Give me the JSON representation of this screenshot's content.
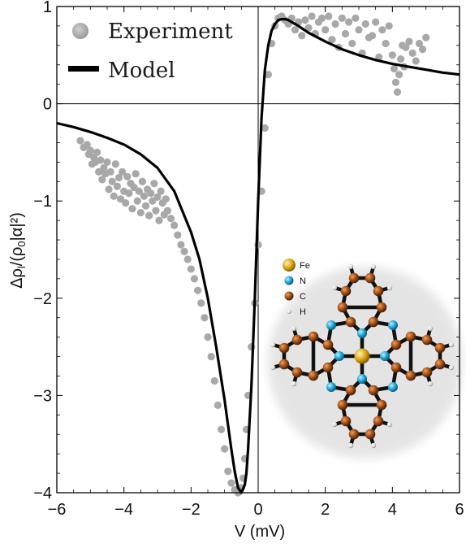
{
  "chart_data": {
    "type": "scatter",
    "xlabel": "V (mV)",
    "ylabel": "Δρ_l/(ρ_0|α|²)",
    "xlim": [
      -6,
      6
    ],
    "ylim": [
      -4,
      1
    ],
    "x_ticks": [
      "−6",
      "−4",
      "−2",
      "0",
      "2",
      "4",
      "6"
    ],
    "y_ticks": [
      "1",
      "0",
      "−1",
      "−2",
      "−3",
      "−4"
    ],
    "legend": {
      "position": "top-left",
      "entries": [
        "Experiment",
        "Model"
      ]
    },
    "colors": {
      "experiment": "#a8a8a8",
      "model": "#000000"
    },
    "series": [
      {
        "name": "Experiment",
        "style": "markers",
        "x": [
          -5.3,
          -5.2,
          -5.1,
          -5.05,
          -5.0,
          -4.95,
          -4.9,
          -4.85,
          -4.8,
          -4.75,
          -4.7,
          -4.65,
          -4.6,
          -4.55,
          -4.5,
          -4.45,
          -4.4,
          -4.35,
          -4.3,
          -4.25,
          -4.2,
          -4.15,
          -4.1,
          -4.05,
          -4.0,
          -3.95,
          -3.9,
          -3.85,
          -3.8,
          -3.75,
          -3.7,
          -3.65,
          -3.6,
          -3.55,
          -3.5,
          -3.45,
          -3.4,
          -3.35,
          -3.3,
          -3.25,
          -3.2,
          -3.15,
          -3.1,
          -3.05,
          -3.0,
          -2.95,
          -2.9,
          -2.85,
          -2.8,
          -2.75,
          -2.7,
          -2.6,
          -2.5,
          -2.4,
          -2.3,
          -2.2,
          -2.1,
          -2.0,
          -1.9,
          -1.8,
          -1.7,
          -1.6,
          -1.5,
          -1.4,
          -1.3,
          -1.2,
          -1.1,
          -1.0,
          -0.9,
          -0.8,
          -0.7,
          -0.6,
          -0.5,
          -0.45,
          -0.4,
          -0.35,
          -0.3,
          -0.2,
          -0.1,
          0.0,
          0.1,
          0.2,
          0.3,
          0.4,
          0.5,
          0.6,
          0.7,
          0.8,
          0.9,
          1.0,
          1.1,
          1.2,
          1.3,
          1.4,
          1.5,
          1.6,
          1.7,
          1.8,
          1.9,
          2.0,
          2.1,
          2.2,
          2.3,
          2.4,
          2.5,
          2.6,
          2.7,
          2.8,
          2.9,
          3.0,
          3.1,
          3.2,
          3.3,
          3.4,
          3.5,
          3.6,
          3.7,
          3.8,
          3.9,
          4.0,
          4.05,
          4.1,
          4.15,
          4.2,
          4.25,
          4.3,
          4.35,
          4.4,
          4.5,
          4.6,
          4.7,
          4.8,
          4.9,
          5.0
        ],
        "y": [
          -0.38,
          -0.45,
          -0.42,
          -0.52,
          -0.48,
          -0.62,
          -0.55,
          -0.6,
          -0.5,
          -0.7,
          -0.58,
          -0.78,
          -0.66,
          -0.72,
          -0.6,
          -0.88,
          -0.7,
          -0.8,
          -0.95,
          -0.62,
          -0.85,
          -0.76,
          -0.98,
          -0.7,
          -0.9,
          -1.02,
          -0.75,
          -0.92,
          -0.82,
          -1.08,
          -0.86,
          -0.72,
          -1.0,
          -0.9,
          -1.12,
          -0.8,
          -0.95,
          -1.05,
          -0.88,
          -1.15,
          -0.92,
          -1.0,
          -0.82,
          -1.1,
          -0.96,
          -1.2,
          -0.9,
          -1.02,
          -1.14,
          -0.98,
          -1.1,
          -1.18,
          -1.25,
          -1.35,
          -1.45,
          -1.52,
          -1.6,
          -1.7,
          -1.8,
          -1.92,
          -2.05,
          -2.2,
          -2.4,
          -2.6,
          -2.85,
          -3.1,
          -3.35,
          -3.55,
          -3.78,
          -3.9,
          -3.97,
          -4.0,
          -3.95,
          -3.85,
          -3.65,
          -3.35,
          -3.0,
          -2.5,
          -2.05,
          -1.45,
          -0.9,
          -0.25,
          0.3,
          0.62,
          0.8,
          0.88,
          0.9,
          0.86,
          0.82,
          0.88,
          0.76,
          0.84,
          0.7,
          0.86,
          0.78,
          0.9,
          0.72,
          0.84,
          0.88,
          0.76,
          0.9,
          0.66,
          0.82,
          0.58,
          0.88,
          0.72,
          0.84,
          0.62,
          0.88,
          0.76,
          0.52,
          0.82,
          0.68,
          0.7,
          0.84,
          0.48,
          0.76,
          0.62,
          0.8,
          0.5,
          0.36,
          0.22,
          0.12,
          0.3,
          0.46,
          0.6,
          0.38,
          0.58,
          0.64,
          0.52,
          0.44,
          0.62,
          0.56,
          0.68
        ]
      },
      {
        "name": "Model",
        "style": "line",
        "x": [
          -6,
          -5.5,
          -5,
          -4.5,
          -4,
          -3.5,
          -3,
          -2.5,
          -2,
          -1.75,
          -1.5,
          -1.25,
          -1,
          -0.9,
          -0.8,
          -0.7,
          -0.6,
          -0.5,
          -0.4,
          -0.35,
          -0.3,
          -0.2,
          -0.1,
          0,
          0.1,
          0.2,
          0.3,
          0.4,
          0.5,
          0.6,
          0.7,
          0.8,
          0.9,
          1.0,
          1.2,
          1.5,
          2,
          2.5,
          3,
          3.5,
          4,
          4.5,
          5,
          5.5,
          6
        ],
        "y": [
          -0.2,
          -0.24,
          -0.29,
          -0.35,
          -0.42,
          -0.52,
          -0.66,
          -0.9,
          -1.32,
          -1.6,
          -2.0,
          -2.5,
          -3.05,
          -3.3,
          -3.55,
          -3.78,
          -3.95,
          -4.0,
          -3.92,
          -3.8,
          -3.55,
          -2.9,
          -2.0,
          -1.0,
          -0.15,
          0.35,
          0.6,
          0.75,
          0.82,
          0.86,
          0.87,
          0.87,
          0.86,
          0.84,
          0.8,
          0.73,
          0.64,
          0.56,
          0.5,
          0.45,
          0.41,
          0.38,
          0.35,
          0.32,
          0.3
        ]
      }
    ]
  },
  "inset": {
    "legend": [
      {
        "label": "Fe",
        "color": "#d9a514"
      },
      {
        "label": "N",
        "color": "#19a3d6"
      },
      {
        "label": "C",
        "color": "#9a4a14"
      },
      {
        "label": "H",
        "color": "#d8d8d8"
      }
    ]
  }
}
